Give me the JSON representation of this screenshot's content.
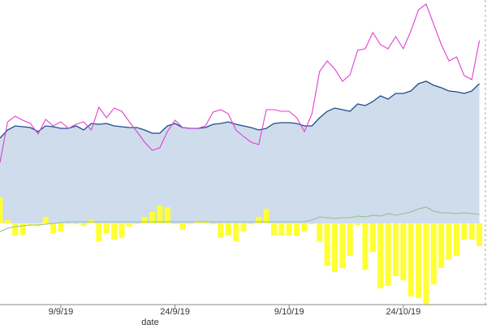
{
  "chart_data": {
    "type": "combo",
    "x_label": "date",
    "x": [
      "2019-09-01",
      "2019-09-02",
      "2019-09-03",
      "2019-09-04",
      "2019-09-05",
      "2019-09-06",
      "2019-09-07",
      "2019-09-08",
      "2019-09-09",
      "2019-09-10",
      "2019-09-11",
      "2019-09-12",
      "2019-09-13",
      "2019-09-14",
      "2019-09-15",
      "2019-09-16",
      "2019-09-17",
      "2019-09-18",
      "2019-09-19",
      "2019-09-20",
      "2019-09-21",
      "2019-09-22",
      "2019-09-23",
      "2019-09-24",
      "2019-09-25",
      "2019-09-26",
      "2019-09-27",
      "2019-09-28",
      "2019-09-29",
      "2019-09-30",
      "2019-10-01",
      "2019-10-02",
      "2019-10-03",
      "2019-10-04",
      "2019-10-05",
      "2019-10-06",
      "2019-10-07",
      "2019-10-08",
      "2019-10-09",
      "2019-10-10",
      "2019-10-11",
      "2019-10-12",
      "2019-10-13",
      "2019-10-14",
      "2019-10-15",
      "2019-10-16",
      "2019-10-17",
      "2019-10-18",
      "2019-10-19",
      "2019-10-20",
      "2019-10-21",
      "2019-10-22",
      "2019-10-23",
      "2019-10-24",
      "2019-10-25",
      "2019-10-26",
      "2019-10-27",
      "2019-10-28",
      "2019-10-29",
      "2019-10-30",
      "2019-10-31",
      "2019-11-01",
      "2019-11-02",
      "2019-11-03"
    ],
    "xlim": [
      "2019-09-01",
      "2019-11-04"
    ],
    "xticks": [
      {
        "value": "2019-09-09",
        "label": "9/9/19"
      },
      {
        "value": "2019-09-24",
        "label": "24/9/19"
      },
      {
        "value": "2019-10-09",
        "label": "9/10/19"
      },
      {
        "value": "2019-10-24",
        "label": "24/10/19"
      }
    ],
    "ylim": [
      -100,
      275
    ],
    "series": [
      {
        "type": "area",
        "color": "#cfdcec",
        "line_color": "#1f4e8c",
        "values": [
          105,
          115,
          120,
          119,
          118,
          113,
          120,
          119,
          117,
          117,
          120,
          115,
          123,
          122,
          123,
          120,
          119,
          118,
          118,
          115,
          111,
          111,
          120,
          123,
          118,
          117,
          117,
          118,
          122,
          123,
          125,
          122,
          120,
          118,
          115,
          117,
          123,
          124,
          124,
          123,
          120,
          120,
          130,
          138,
          142,
          140,
          138,
          147,
          145,
          150,
          157,
          153,
          160,
          160,
          163,
          172,
          175,
          170,
          167,
          163,
          162,
          160,
          163,
          172
        ]
      },
      {
        "type": "line",
        "color": "#e040d0",
        "values": [
          75,
          125,
          132,
          127,
          123,
          110,
          128,
          120,
          125,
          117,
          122,
          125,
          115,
          143,
          130,
          142,
          138,
          125,
          113,
          100,
          90,
          93,
          113,
          127,
          118,
          117,
          117,
          120,
          137,
          140,
          135,
          115,
          107,
          100,
          97,
          140,
          140,
          138,
          138,
          130,
          113,
          135,
          187,
          200,
          190,
          175,
          183,
          213,
          215,
          235,
          220,
          215,
          230,
          215,
          237,
          263,
          270,
          245,
          220,
          200,
          205,
          182,
          177,
          225
        ]
      },
      {
        "type": "line",
        "color": "#8fc08f",
        "values": [
          -10,
          -6,
          -4,
          -3,
          -2,
          -2,
          -1,
          0,
          1,
          2,
          2,
          2,
          2,
          2,
          2,
          2,
          2,
          2,
          2,
          2,
          2,
          2,
          2,
          2,
          2,
          2,
          2,
          2,
          2,
          2,
          2,
          2,
          2,
          2,
          2,
          2,
          2,
          2,
          2,
          2,
          2,
          4,
          8,
          7,
          6,
          7,
          7,
          9,
          8,
          10,
          9,
          12,
          10,
          12,
          14,
          18,
          20,
          15,
          13,
          13,
          12,
          13,
          12,
          11
        ]
      },
      {
        "type": "bar",
        "color": "#ffff33",
        "values": [
          32,
          4,
          -15,
          -14,
          -2,
          -3,
          8,
          -12,
          -10,
          -1,
          -1,
          -3,
          4,
          -22,
          -12,
          -20,
          -18,
          -4,
          -1,
          8,
          14,
          22,
          20,
          -1,
          -8,
          -1,
          3,
          2,
          -1,
          -18,
          -15,
          -22,
          -10,
          -1,
          8,
          18,
          -15,
          -15,
          -15,
          -15,
          -10,
          -1,
          -22,
          -52,
          -60,
          -55,
          -40,
          -2,
          -57,
          -35,
          -80,
          -77,
          -65,
          -70,
          -90,
          -92,
          -100,
          -75,
          -55,
          -45,
          -40,
          -20,
          -20,
          -28
        ]
      }
    ]
  }
}
